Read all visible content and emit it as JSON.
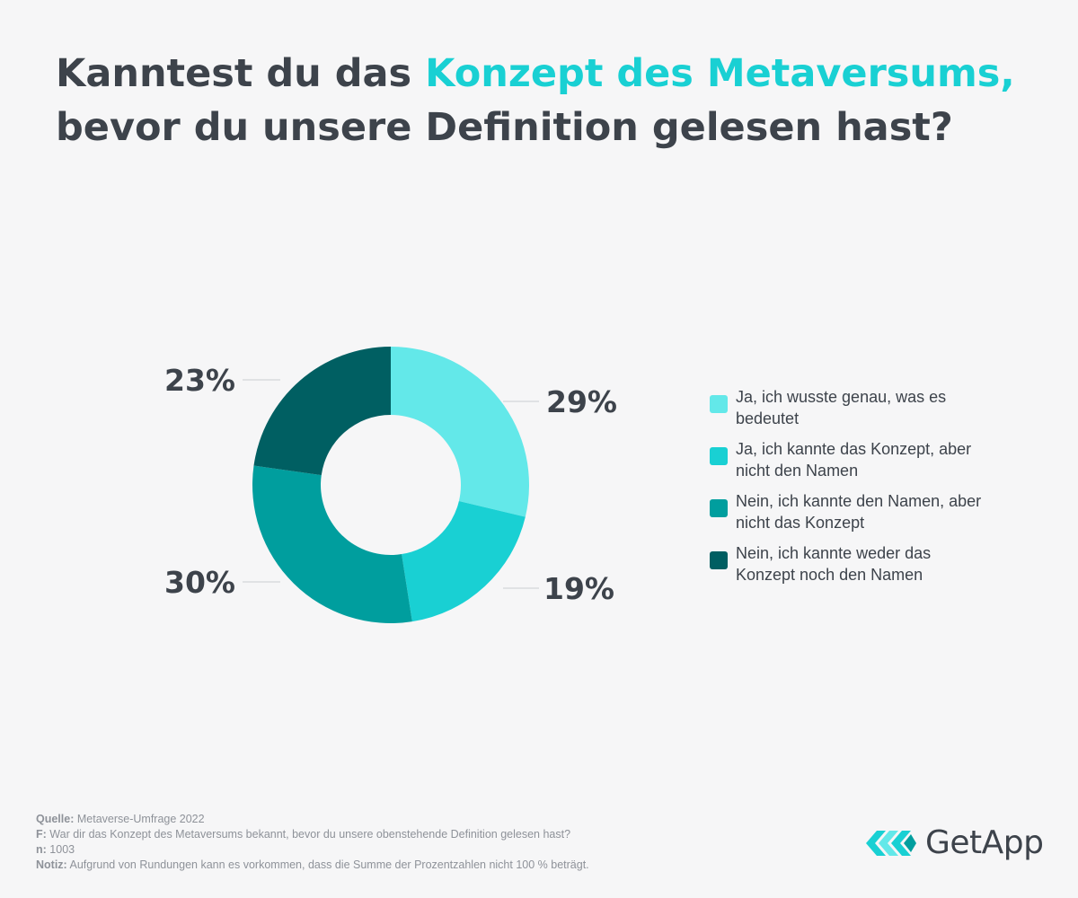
{
  "title": {
    "part1": "Kanntest du das ",
    "accent": "Konzept des Metaversums,",
    "part2": "bevor du unsere Definition gelesen hast?"
  },
  "colors": {
    "accent": "#19d0d3",
    "text": "#3d434b",
    "background": "#f6f6f7"
  },
  "chart_data": {
    "type": "pie",
    "variant": "donut",
    "title": "Kanntest du das Konzept des Metaversums, bevor du unsere Definition gelesen hast?",
    "slices": [
      {
        "label": "Ja, ich wusste genau, was es bedeutet",
        "value": 29,
        "display": "29%",
        "color": "#63e8e9"
      },
      {
        "label": "Ja, ich kannte das Konzept, aber nicht den Namen",
        "value": 19,
        "display": "19%",
        "color": "#19d0d3"
      },
      {
        "label": "Nein, ich kannte den Namen, aber nicht das Konzept",
        "value": 30,
        "display": "30%",
        "color": "#009e9e"
      },
      {
        "label": "Nein, ich kannte weder das Konzept noch den Namen",
        "value": 23,
        "display": "23%",
        "color": "#005f62"
      }
    ],
    "legend_position": "right"
  },
  "footer": {
    "source_label": "Quelle:",
    "source": "Metaverse-Umfrage 2022",
    "question_label": "F:",
    "question": "War dir das Konzept des Metaversums bekannt, bevor du unsere obenstehende Definition gelesen hast?",
    "n_label": "n:",
    "n": "1003",
    "note_label": "Notiz:",
    "note": "Aufgrund von Rundungen kann es vorkommen, dass die Summe der Prozentzahlen nicht 100 % beträgt."
  },
  "logo": {
    "text": "GetApp",
    "icon": "getapp-logo-icon"
  }
}
